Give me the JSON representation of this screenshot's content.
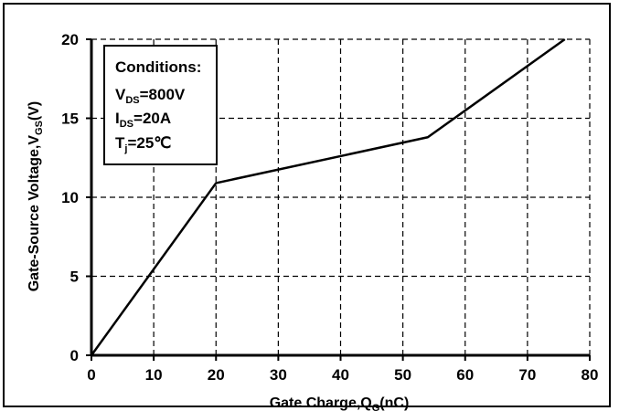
{
  "chart_data": {
    "type": "line",
    "title": "",
    "xlabel": {
      "main": "Gate Charge,Q",
      "sub": "G",
      "unit": "(nC)"
    },
    "ylabel": {
      "main": "Gate-Source Voltage,V",
      "sub": "GS",
      "unit": "(V)"
    },
    "xlim": [
      0,
      80
    ],
    "ylim": [
      0,
      20
    ],
    "x_ticks": [
      "0",
      "10",
      "20",
      "30",
      "40",
      "50",
      "60",
      "70",
      "80"
    ],
    "y_ticks": [
      "0",
      "5",
      "10",
      "15",
      "20"
    ],
    "grid": true,
    "grid_style": "dashed",
    "series": [
      {
        "x": [
          0,
          20,
          54,
          76
        ],
        "y": [
          0,
          10.9,
          13.8,
          20
        ],
        "color": "#000000"
      }
    ],
    "conditions": {
      "title": "Conditions:",
      "lines": [
        {
          "main": "V",
          "sub": "DS",
          "value": "=800V"
        },
        {
          "main": "I",
          "sub": "DS",
          "value": "=20A"
        },
        {
          "main": "T",
          "sub": "j",
          "value": "=25℃"
        }
      ]
    }
  }
}
